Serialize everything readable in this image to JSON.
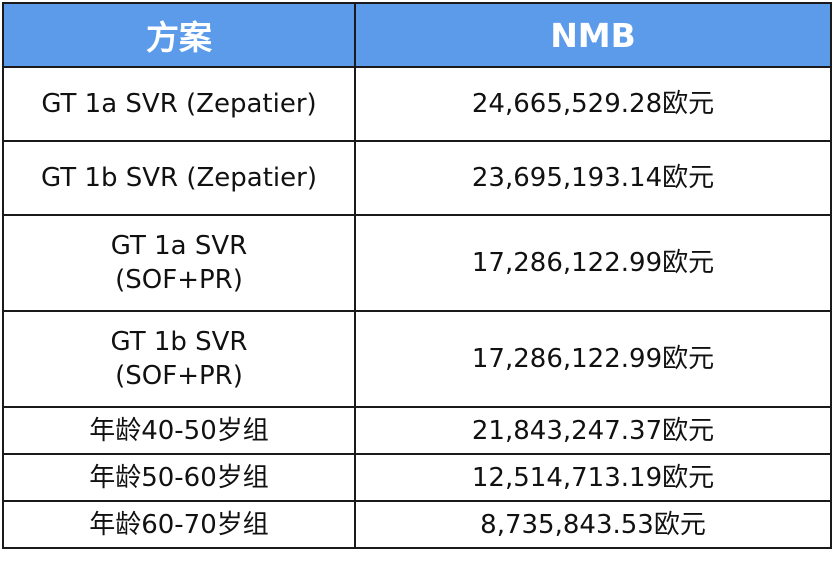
{
  "header": {
    "col1": "方案",
    "col2": "NMB"
  },
  "rows": [
    {
      "plan": [
        "GT 1a SVR (Zepatier)"
      ],
      "nmb": "24,665,529.28欧元"
    },
    {
      "plan": [
        "GT 1b SVR (Zepatier)"
      ],
      "nmb": "23,695,193.14欧元"
    },
    {
      "plan": [
        "GT 1a SVR",
        "(SOF+PR)"
      ],
      "nmb": "17,286,122.99欧元"
    },
    {
      "plan": [
        "GT 1b SVR",
        "(SOF+PR)"
      ],
      "nmb": "17,286,122.99欧元"
    },
    {
      "plan": [
        "年龄40-50岁组"
      ],
      "nmb": "21,843,247.37欧元"
    },
    {
      "plan": [
        "年龄50-60岁组"
      ],
      "nmb": "12,514,713.19欧元"
    },
    {
      "plan": [
        "年龄60-70岁组"
      ],
      "nmb": "8,735,843.53欧元"
    }
  ],
  "colors": {
    "header_bg": "#5b9bea",
    "header_text": "#ffffff",
    "border": "#1a1a1a"
  }
}
